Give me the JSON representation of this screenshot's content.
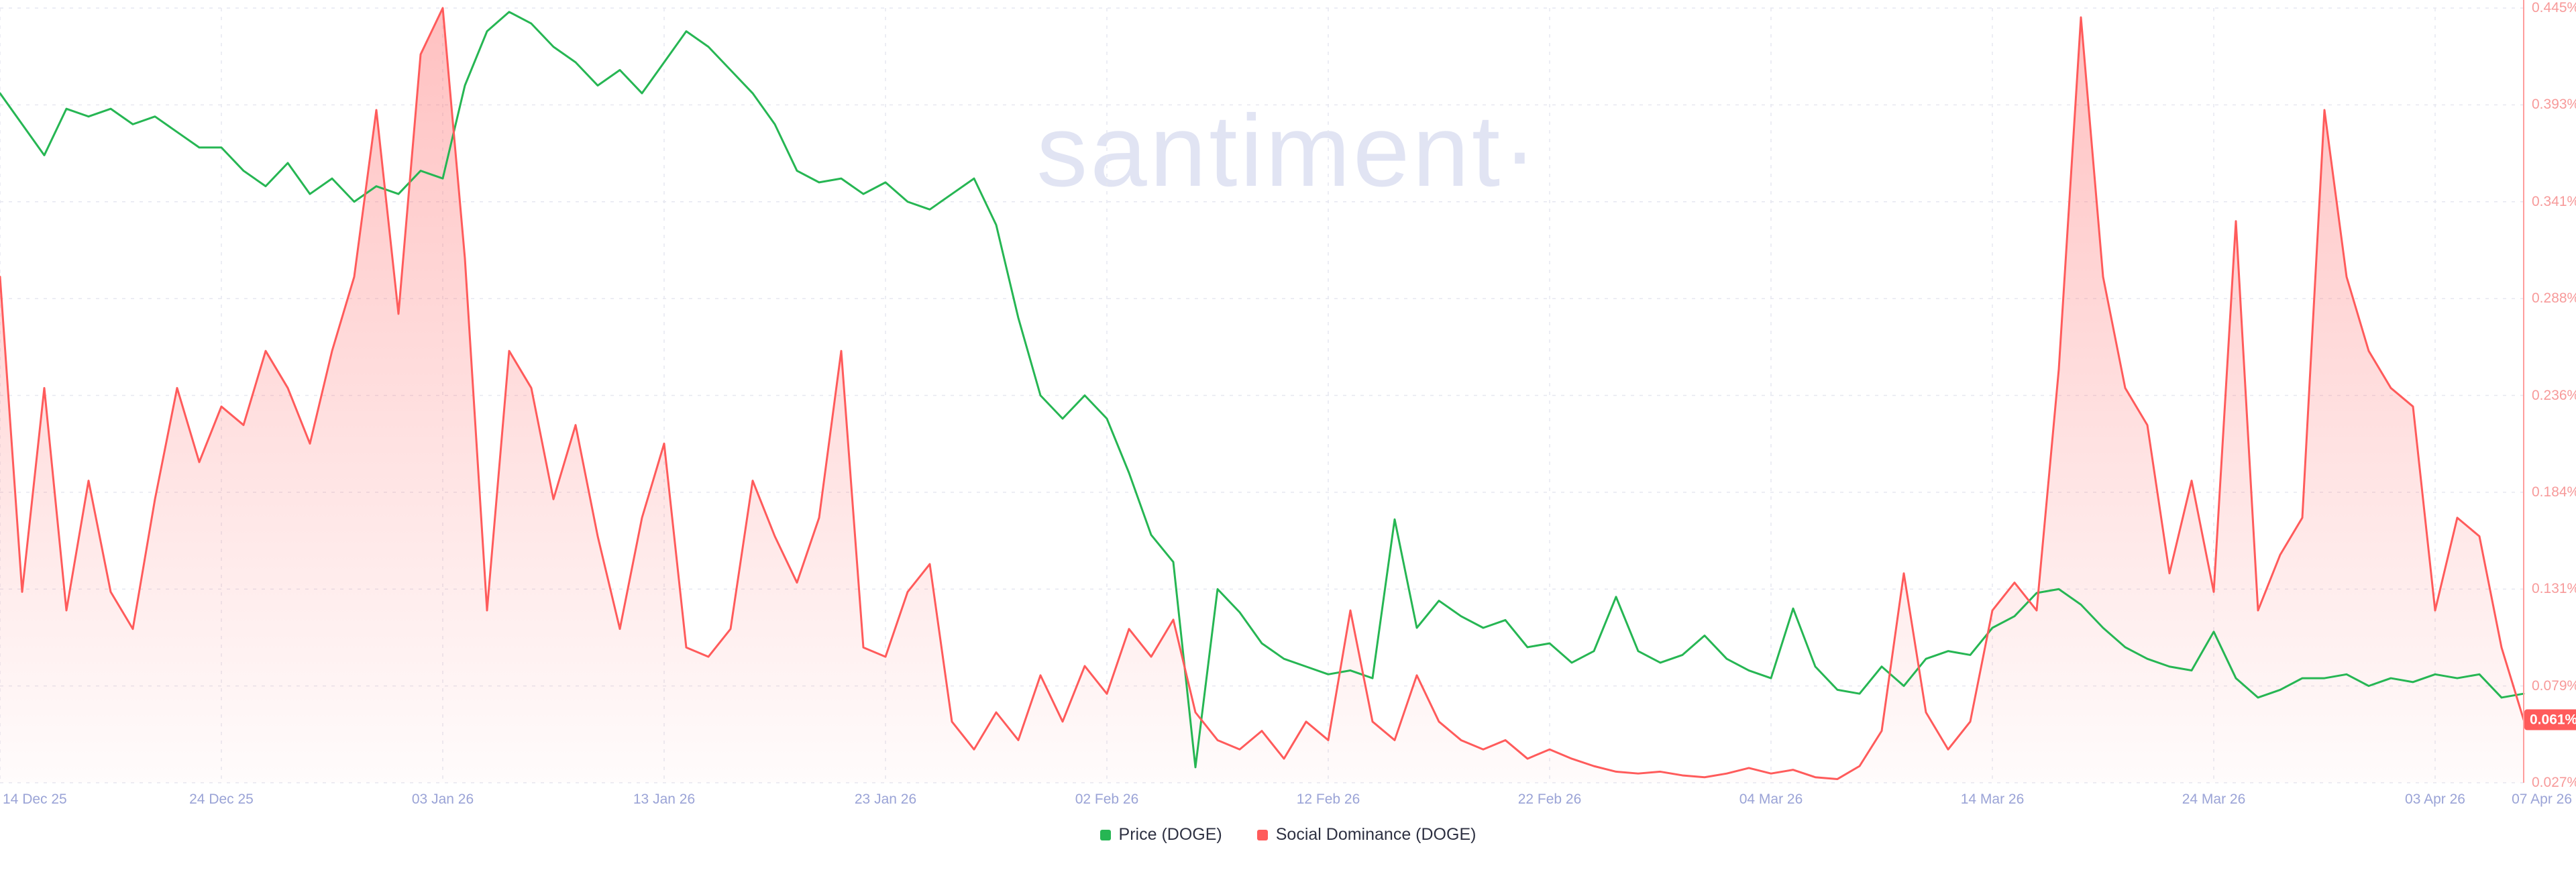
{
  "watermark": "santiment·",
  "legend": [
    {
      "id": "price",
      "label": "Price (DOGE)",
      "color": "#26b653"
    },
    {
      "id": "social-dominance",
      "label": "Social Dominance (DOGE)",
      "color": "#ff5b5b"
    }
  ],
  "colors": {
    "price_line": "#26b653",
    "dominance_line": "#ff5b5b",
    "dominance_fill_top": "rgba(255,91,91,0.38)",
    "dominance_fill_bottom": "rgba(255,91,91,0.02)",
    "axis_line": "#ff9d9d",
    "y_label_text": "#f79a9a",
    "x_label_text": "#9aa3d6",
    "badge_bg": "#ff5b5b",
    "badge_text": "#ffffff",
    "watermark_text": "#e1e4f3",
    "legend_text": "#2e3142"
  },
  "y_axis": {
    "ticks": [
      "0.445%",
      "0.393%",
      "0.341%",
      "0.288%",
      "0.236%",
      "0.184%",
      "0.131%",
      "0.079%",
      "0.027%"
    ],
    "current_badge": "0.061%",
    "current_value": 0.061
  },
  "x_axis": {
    "ticks": [
      "14 Dec 25",
      "24 Dec 25",
      "03 Jan 26",
      "13 Jan 26",
      "23 Jan 26",
      "02 Feb 26",
      "12 Feb 26",
      "22 Feb 26",
      "04 Mar 26",
      "14 Mar 26",
      "24 Mar 26",
      "03 Apr 26",
      "07 Apr 26"
    ]
  },
  "chart_data": {
    "type": "line",
    "title": "",
    "x_start": "14 Dec 25",
    "x_end": "07 Apr 26",
    "x_interval": "daily",
    "points_per_series": 115,
    "x_tick_days": [
      0,
      10,
      20,
      30,
      40,
      50,
      60,
      70,
      80,
      90,
      100,
      110,
      114
    ],
    "dominance_axis_range": [
      0.027,
      0.445
    ],
    "grid": true,
    "legend_position": "bottom",
    "series": [
      {
        "id": "price",
        "name": "Price (DOGE)",
        "color": "#26b653",
        "scale": "normalized 0-1 of plot height (price axis not displayed on chart)",
        "values": [
          0.89,
          0.85,
          0.81,
          0.87,
          0.86,
          0.87,
          0.85,
          0.86,
          0.84,
          0.82,
          0.82,
          0.79,
          0.77,
          0.8,
          0.76,
          0.78,
          0.75,
          0.77,
          0.76,
          0.79,
          0.78,
          0.9,
          0.97,
          0.995,
          0.98,
          0.95,
          0.93,
          0.9,
          0.92,
          0.89,
          0.93,
          0.97,
          0.95,
          0.92,
          0.89,
          0.85,
          0.79,
          0.775,
          0.78,
          0.76,
          0.775,
          0.75,
          0.74,
          0.76,
          0.78,
          0.72,
          0.6,
          0.5,
          0.47,
          0.5,
          0.47,
          0.4,
          0.32,
          0.285,
          0.02,
          0.25,
          0.22,
          0.18,
          0.16,
          0.15,
          0.14,
          0.145,
          0.135,
          0.34,
          0.2,
          0.235,
          0.215,
          0.2,
          0.21,
          0.175,
          0.18,
          0.155,
          0.17,
          0.24,
          0.17,
          0.155,
          0.165,
          0.19,
          0.16,
          0.145,
          0.135,
          0.225,
          0.15,
          0.12,
          0.115,
          0.15,
          0.125,
          0.16,
          0.17,
          0.165,
          0.2,
          0.215,
          0.245,
          0.25,
          0.23,
          0.2,
          0.175,
          0.16,
          0.15,
          0.145,
          0.195,
          0.135,
          0.11,
          0.12,
          0.135,
          0.135,
          0.14,
          0.125,
          0.135,
          0.13,
          0.14,
          0.135,
          0.14,
          0.11,
          0.115
        ]
      },
      {
        "id": "social-dominance",
        "name": "Social Dominance (DOGE)",
        "color": "#ff5b5b",
        "unit": "%",
        "fill": "gradient",
        "last_value": 0.061,
        "values": [
          0.3,
          0.13,
          0.24,
          0.12,
          0.19,
          0.13,
          0.11,
          0.18,
          0.24,
          0.2,
          0.23,
          0.22,
          0.26,
          0.24,
          0.21,
          0.26,
          0.3,
          0.39,
          0.28,
          0.42,
          0.445,
          0.31,
          0.12,
          0.26,
          0.24,
          0.18,
          0.22,
          0.16,
          0.11,
          0.17,
          0.21,
          0.1,
          0.095,
          0.11,
          0.19,
          0.16,
          0.135,
          0.17,
          0.26,
          0.1,
          0.095,
          0.13,
          0.145,
          0.06,
          0.045,
          0.065,
          0.05,
          0.085,
          0.06,
          0.09,
          0.075,
          0.11,
          0.095,
          0.115,
          0.065,
          0.05,
          0.045,
          0.055,
          0.04,
          0.06,
          0.05,
          0.12,
          0.06,
          0.05,
          0.085,
          0.06,
          0.05,
          0.045,
          0.05,
          0.04,
          0.045,
          0.04,
          0.036,
          0.033,
          0.032,
          0.033,
          0.031,
          0.03,
          0.032,
          0.035,
          0.032,
          0.034,
          0.03,
          0.029,
          0.036,
          0.055,
          0.14,
          0.065,
          0.045,
          0.06,
          0.12,
          0.135,
          0.12,
          0.25,
          0.44,
          0.3,
          0.24,
          0.22,
          0.14,
          0.19,
          0.13,
          0.33,
          0.12,
          0.15,
          0.17,
          0.39,
          0.3,
          0.26,
          0.24,
          0.23,
          0.12,
          0.17,
          0.16,
          0.1,
          0.061
        ]
      }
    ]
  }
}
